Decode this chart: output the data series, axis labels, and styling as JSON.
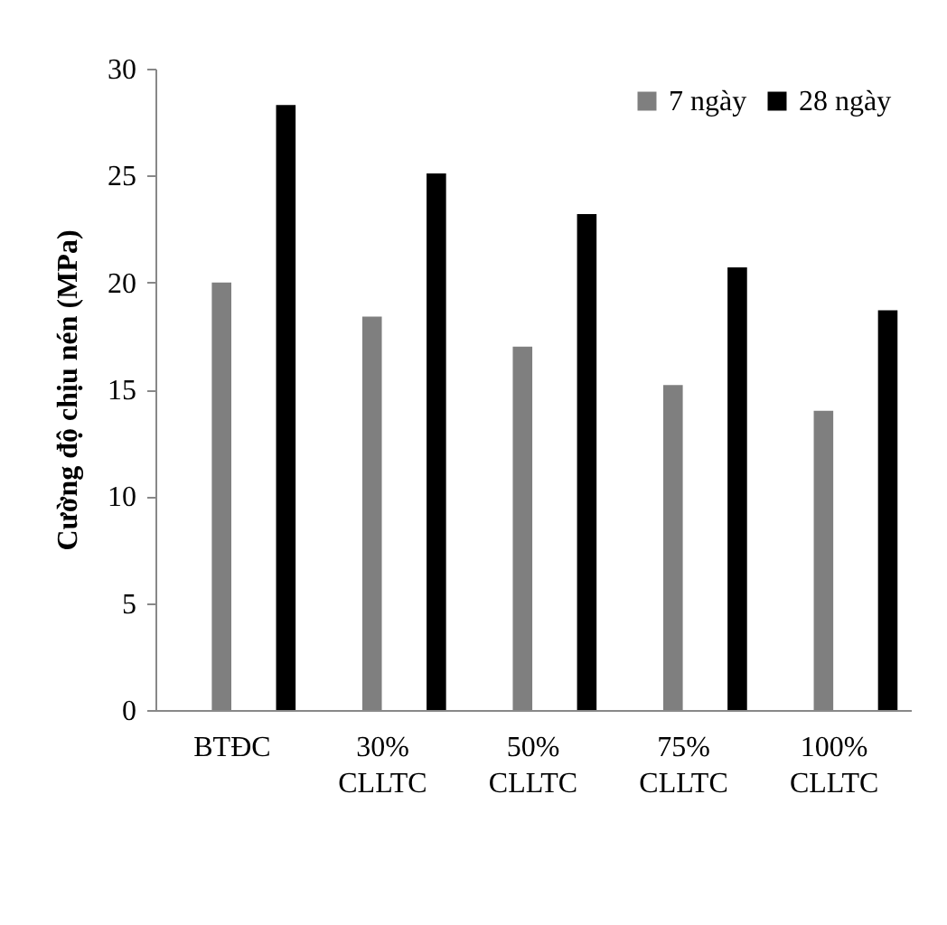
{
  "chart_data": {
    "type": "bar",
    "ylabel": "Cường độ chịu nén (MPa)",
    "categories": [
      "BTĐC",
      "30% CLLTC",
      "50% CLLTC",
      "75% CLLTC",
      "100% CLLTC"
    ],
    "series": [
      {
        "name": "7 ngày",
        "color": "#7f7f7f",
        "values": [
          20.0,
          18.4,
          17.0,
          15.2,
          14.0
        ]
      },
      {
        "name": "28 ngày",
        "color": "#000000",
        "values": [
          28.3,
          25.1,
          23.2,
          20.7,
          18.7
        ]
      }
    ],
    "ylim": [
      0,
      30
    ],
    "yticks": [
      0,
      5,
      10,
      15,
      20,
      25,
      30
    ],
    "grid": false,
    "legend": "top right"
  }
}
